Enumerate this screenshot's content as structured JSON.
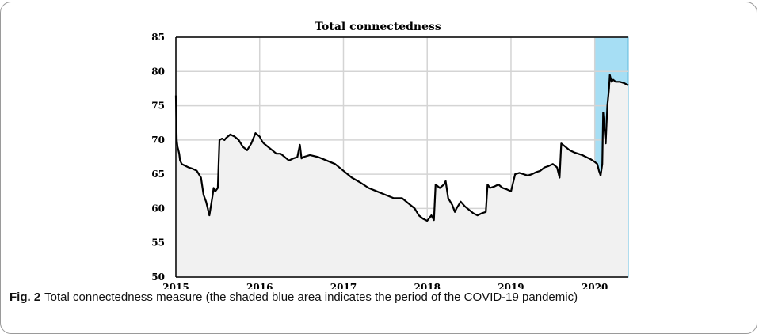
{
  "colors": {
    "shade": "#a6def4",
    "area": "#f1f1f1",
    "line": "#000000",
    "grid": "#d4d4d4"
  },
  "caption": {
    "label": "Fig. 2",
    "text": "Total connectedness measure (the shaded blue area indicates the period of the COVID-19 pandemic)"
  },
  "chart_data": {
    "type": "line",
    "title": "Total connectedness",
    "xlabel": "",
    "ylabel": "",
    "xlim": [
      2015.0,
      2020.4
    ],
    "ylim": [
      50,
      85
    ],
    "xticks": [
      2015,
      2016,
      2017,
      2018,
      2019,
      2020
    ],
    "yticks": [
      50,
      55,
      60,
      65,
      70,
      75,
      80,
      85
    ],
    "grid": true,
    "shaded_region": {
      "x": [
        2020.0,
        2020.4
      ]
    },
    "series": [
      {
        "x": [
          2015.0,
          2015.01,
          2015.02,
          2015.03,
          2015.04,
          2015.05,
          2015.07,
          2015.1,
          2015.15,
          2015.2,
          2015.25,
          2015.3,
          2015.33,
          2015.36,
          2015.38,
          2015.4,
          2015.42,
          2015.44,
          2015.45,
          2015.47,
          2015.5,
          2015.52,
          2015.55,
          2015.58,
          2015.6,
          2015.62,
          2015.65,
          2015.7,
          2015.75,
          2015.8,
          2015.85,
          2015.9,
          2015.95,
          2016.0,
          2016.03,
          2016.05,
          2016.07,
          2016.1,
          2016.15,
          2016.2,
          2016.25,
          2016.3,
          2016.35,
          2016.4,
          2016.45,
          2016.48,
          2016.5,
          2016.52,
          2016.6,
          2016.7,
          2016.8,
          2016.9,
          2017.0,
          2017.1,
          2017.2,
          2017.3,
          2017.4,
          2017.5,
          2017.6,
          2017.7,
          2017.8,
          2017.85,
          2017.9,
          2017.95,
          2018.0,
          2018.05,
          2018.08,
          2018.1,
          2018.15,
          2018.2,
          2018.22,
          2018.25,
          2018.3,
          2018.33,
          2018.35,
          2018.4,
          2018.45,
          2018.5,
          2018.55,
          2018.6,
          2018.65,
          2018.7,
          2018.72,
          2018.75,
          2018.8,
          2018.85,
          2018.9,
          2018.95,
          2019.0,
          2019.05,
          2019.1,
          2019.15,
          2019.2,
          2019.25,
          2019.3,
          2019.35,
          2019.4,
          2019.45,
          2019.5,
          2019.55,
          2019.58,
          2019.6,
          2019.65,
          2019.7,
          2019.75,
          2019.8,
          2019.85,
          2019.9,
          2019.95,
          2020.0,
          2020.03,
          2020.05,
          2020.07,
          2020.09,
          2020.1,
          2020.12,
          2020.13,
          2020.15,
          2020.17,
          2020.18,
          2020.2,
          2020.22,
          2020.25,
          2020.3,
          2020.35,
          2020.4
        ],
        "values": [
          76.5,
          70.0,
          69.0,
          68.5,
          68.0,
          67.0,
          66.5,
          66.3,
          66.0,
          65.8,
          65.5,
          64.5,
          62.0,
          61.0,
          60.0,
          59.0,
          60.5,
          62.0,
          63.0,
          62.5,
          63.0,
          70.0,
          70.2,
          70.0,
          70.3,
          70.5,
          70.8,
          70.5,
          70.0,
          69.0,
          68.5,
          69.5,
          71.0,
          70.5,
          69.8,
          69.5,
          69.3,
          69.0,
          68.5,
          68.0,
          68.0,
          67.5,
          67.0,
          67.3,
          67.5,
          69.3,
          67.3,
          67.5,
          67.8,
          67.5,
          67.0,
          66.5,
          65.5,
          64.5,
          63.8,
          63.0,
          62.5,
          62.0,
          61.5,
          61.5,
          60.5,
          60.0,
          59.0,
          58.5,
          58.2,
          59.0,
          58.3,
          63.5,
          63.0,
          63.5,
          64.0,
          61.5,
          60.5,
          59.5,
          60.0,
          61.0,
          60.3,
          59.8,
          59.3,
          59.0,
          59.3,
          59.5,
          63.5,
          63.0,
          63.2,
          63.5,
          63.0,
          62.8,
          62.5,
          65.0,
          65.2,
          65.0,
          64.8,
          65.0,
          65.3,
          65.5,
          66.0,
          66.2,
          66.5,
          66.0,
          64.5,
          69.5,
          69.0,
          68.5,
          68.2,
          68.0,
          67.8,
          67.5,
          67.2,
          66.8,
          66.5,
          65.5,
          64.8,
          66.5,
          74.0,
          71.0,
          69.5,
          75.0,
          77.5,
          79.5,
          78.5,
          78.8,
          78.5,
          78.5,
          78.3,
          78.0
        ]
      }
    ]
  }
}
